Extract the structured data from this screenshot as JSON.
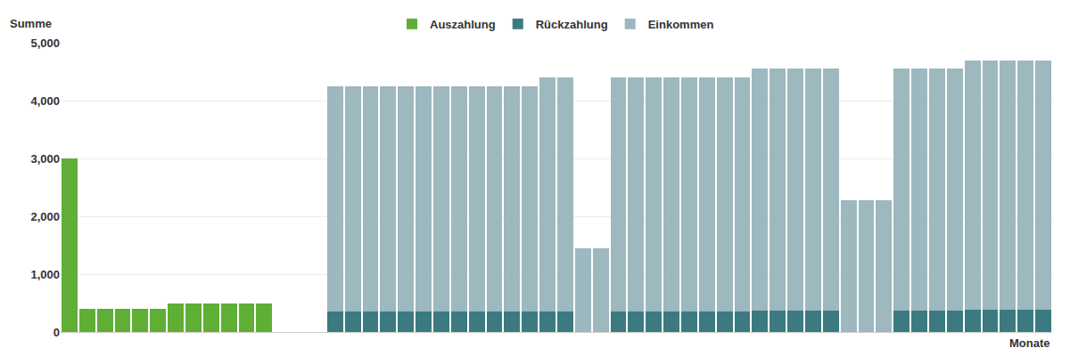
{
  "chart_data": {
    "type": "bar",
    "stacked": true,
    "x_label": "Monate",
    "y_label": "Summe",
    "categories": [
      null,
      null,
      null,
      null,
      null,
      null,
      null,
      null,
      null,
      null,
      null,
      null,
      null,
      null,
      null,
      null,
      null,
      null,
      null,
      null,
      null,
      null,
      null,
      null,
      null,
      null,
      null,
      null,
      null,
      null,
      null,
      null,
      null,
      null,
      null,
      null,
      null,
      null,
      null,
      null,
      null,
      null,
      null,
      null,
      null,
      null,
      null,
      null,
      null,
      null,
      null,
      null,
      null,
      null,
      null,
      null
    ],
    "series": [
      {
        "name": "Auszahlung",
        "color": "#5fae36",
        "values": [
          3000,
          400,
          400,
          400,
          400,
          400,
          500,
          500,
          500,
          500,
          500,
          500,
          null,
          null,
          null,
          null,
          null,
          null,
          null,
          null,
          null,
          null,
          null,
          null,
          null,
          null,
          null,
          null,
          null,
          null,
          null,
          null,
          null,
          null,
          null,
          null,
          null,
          null,
          null,
          null,
          null,
          null,
          null,
          null,
          null,
          null,
          null,
          null,
          null,
          null,
          null,
          null,
          null,
          null,
          null,
          null
        ]
      },
      {
        "name": "Rückzahlung",
        "color": "#3b7a80",
        "values": [
          null,
          null,
          null,
          null,
          null,
          null,
          null,
          null,
          null,
          null,
          null,
          null,
          null,
          null,
          null,
          350,
          350,
          350,
          350,
          350,
          350,
          350,
          350,
          350,
          350,
          350,
          350,
          360,
          360,
          null,
          null,
          360,
          360,
          360,
          360,
          360,
          360,
          360,
          360,
          375,
          375,
          375,
          375,
          375,
          null,
          null,
          null,
          375,
          375,
          375,
          375,
          390,
          390,
          390,
          390,
          390
        ]
      },
      {
        "name": "Einkommen",
        "color": "#9db8bf",
        "values": [
          null,
          null,
          null,
          null,
          null,
          null,
          null,
          null,
          null,
          null,
          null,
          null,
          null,
          null,
          null,
          3900,
          3900,
          3900,
          3900,
          3900,
          3900,
          3900,
          3900,
          3900,
          3900,
          3900,
          3900,
          4040,
          4040,
          1450,
          1450,
          4040,
          4040,
          4040,
          4040,
          4040,
          4040,
          4040,
          4040,
          4175,
          4175,
          4175,
          4175,
          4175,
          2280,
          2280,
          2280,
          4175,
          4175,
          4175,
          4175,
          4310,
          4310,
          4310,
          4310,
          4310
        ]
      }
    ],
    "ylim": [
      0,
      5000
    ],
    "yticks": [
      0,
      {
        "value": 1000,
        "label": "1,000"
      },
      {
        "value": 2000,
        "label": "2,000"
      },
      {
        "value": 3000,
        "label": "3,000"
      },
      {
        "value": 4000,
        "label": "4,000"
      },
      {
        "value": 5000,
        "label": "5,000"
      }
    ],
    "grid": true,
    "legend": "top",
    "tick_labels": "y"
  }
}
